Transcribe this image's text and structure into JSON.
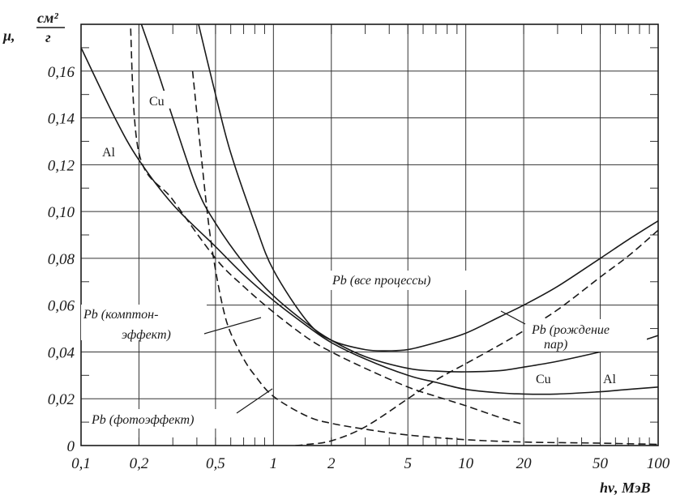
{
  "chart_data": {
    "type": "line",
    "title": "",
    "ylabel": "μ, см²/г",
    "ylabel_parts": {
      "prefix": "μ,",
      "numerator": "см²",
      "denominator": "г"
    },
    "xlabel": "hν, МэВ",
    "xscale": "log",
    "xlim": [
      0.1,
      100
    ],
    "ylim": [
      0,
      0.18
    ],
    "grid": true,
    "x_ticks": [
      0.1,
      0.2,
      0.5,
      1,
      2,
      5,
      10,
      20,
      50,
      100
    ],
    "x_tick_labels": [
      "0,1",
      "0,2",
      "0,5",
      "1",
      "2",
      "5",
      "10",
      "20",
      "50",
      "100"
    ],
    "y_ticks": [
      0,
      0.02,
      0.04,
      0.06,
      0.08,
      0.1,
      0.12,
      0.14,
      0.16
    ],
    "y_tick_labels": [
      "0",
      "0,02",
      "0,04",
      "0,06",
      "0,08",
      "0,10",
      "0,12",
      "0,14",
      "0,16"
    ],
    "series": [
      {
        "name": "Al",
        "style": "solid",
        "x": [
          0.1,
          0.15,
          0.2,
          0.3,
          0.5,
          0.7,
          1,
          1.5,
          2,
          3,
          5,
          7,
          10,
          15,
          20,
          30,
          50,
          70,
          100
        ],
        "y": [
          0.17,
          0.14,
          0.122,
          0.103,
          0.085,
          0.073,
          0.062,
          0.051,
          0.044,
          0.037,
          0.03,
          0.027,
          0.024,
          0.0225,
          0.022,
          0.022,
          0.023,
          0.024,
          0.025
        ]
      },
      {
        "name": "Cu",
        "style": "solid",
        "x": [
          0.2,
          0.25,
          0.3,
          0.4,
          0.5,
          0.7,
          1,
          1.5,
          2,
          3,
          5,
          7,
          10,
          15,
          20,
          30,
          50,
          70,
          100
        ],
        "y": [
          0.183,
          0.16,
          0.14,
          0.11,
          0.095,
          0.078,
          0.064,
          0.052,
          0.045,
          0.038,
          0.033,
          0.0318,
          0.0315,
          0.032,
          0.0335,
          0.036,
          0.04,
          0.043,
          0.047
        ]
      },
      {
        "name": "Pb (все процессы)",
        "style": "solid",
        "x": [
          0.4,
          0.5,
          0.6,
          0.8,
          1,
          1.5,
          2,
          3,
          4,
          5,
          7,
          10,
          15,
          20,
          30,
          50,
          70,
          100
        ],
        "y": [
          0.183,
          0.15,
          0.125,
          0.095,
          0.075,
          0.053,
          0.045,
          0.041,
          0.0405,
          0.041,
          0.044,
          0.048,
          0.055,
          0.06,
          0.068,
          0.08,
          0.088,
          0.096
        ]
      },
      {
        "name": "Pb (комптон-эффект)",
        "style": "dashed",
        "x": [
          0.18,
          0.2,
          0.3,
          0.5,
          0.7,
          1,
          1.5,
          2,
          3,
          5,
          7,
          10,
          15,
          20
        ],
        "y": [
          0.183,
          0.125,
          0.105,
          0.08,
          0.068,
          0.057,
          0.046,
          0.04,
          0.033,
          0.025,
          0.021,
          0.017,
          0.012,
          0.009
        ]
      },
      {
        "name": "Pb (фотоэффект)",
        "style": "dashed",
        "x": [
          0.38,
          0.42,
          0.46,
          0.5,
          0.55,
          0.6,
          0.7,
          0.8,
          1,
          1.5,
          2,
          3,
          5,
          10,
          20,
          50,
          100
        ],
        "y": [
          0.16,
          0.125,
          0.095,
          0.075,
          0.058,
          0.048,
          0.037,
          0.03,
          0.021,
          0.0125,
          0.0095,
          0.007,
          0.0045,
          0.0025,
          0.0015,
          0.001,
          0.0005
        ]
      },
      {
        "name": "Pb (рождение пар)",
        "style": "dashed",
        "x": [
          1.3,
          1.5,
          2,
          3,
          5,
          7,
          10,
          15,
          20,
          30,
          50,
          70,
          100
        ],
        "y": [
          0,
          0.0005,
          0.002,
          0.008,
          0.02,
          0.028,
          0.035,
          0.043,
          0.049,
          0.058,
          0.072,
          0.081,
          0.092
        ]
      }
    ],
    "labels": {
      "cu": "Cu",
      "al": "Al",
      "cu_right": "Cu",
      "al_right": "Al",
      "pb_all": "Pb (все процессы)",
      "pb_pairs_1": "Pb (рождение",
      "pb_pairs_2": "пар)",
      "pb_compton_1": "Pb (комптон-",
      "pb_compton_2": "эффект)",
      "pb_photo": "Pb (фотоэффект)"
    }
  }
}
